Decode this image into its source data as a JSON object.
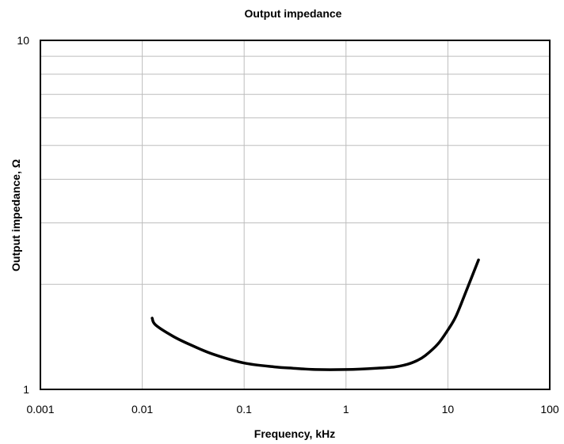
{
  "chart_data": {
    "type": "line",
    "title": "Output impedance",
    "xlabel": "Frequency, kHz",
    "ylabel": "Output impedance, Ω",
    "xscale": "log",
    "yscale": "log",
    "xlim": [
      0.001,
      100
    ],
    "ylim": [
      1,
      10
    ],
    "x_ticks": [
      "0.001",
      "0.01",
      "0.1",
      "1",
      "10",
      "100"
    ],
    "y_ticks": [
      "1",
      "10"
    ],
    "grid": true,
    "legend": "none",
    "series": [
      {
        "x": [
          0.0125,
          0.0135,
          0.02,
          0.03,
          0.05,
          0.1,
          0.2,
          0.3,
          0.5,
          1,
          2,
          3,
          4,
          5,
          6,
          8,
          10,
          12,
          15,
          20
        ],
        "y": [
          1.6,
          1.53,
          1.42,
          1.34,
          1.26,
          1.19,
          1.16,
          1.15,
          1.14,
          1.14,
          1.15,
          1.16,
          1.18,
          1.21,
          1.25,
          1.35,
          1.48,
          1.62,
          1.9,
          2.35
        ]
      }
    ]
  }
}
